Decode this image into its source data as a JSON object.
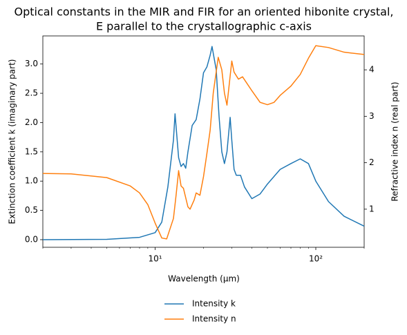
{
  "chart_data": {
    "type": "line",
    "title": "Optical constants in the MIR and FIR for an oriented hibonite crystal,",
    "subtitle": "E parallel to the crystallographic c-axis",
    "xlabel": "Wavelength (μm)",
    "ylabel": "Extinction coefficient k (imaginary part)",
    "y2label": "Refractive index n (real part)",
    "xscale": "log",
    "xlim": [
      2,
      200
    ],
    "xticks": [
      {
        "value": 10,
        "label": "10¹"
      },
      {
        "value": 100,
        "label": "10²"
      }
    ],
    "xminor_ticks": [
      2,
      3,
      4,
      5,
      6,
      7,
      8,
      9,
      20,
      30,
      40,
      50,
      60,
      70,
      80,
      90,
      200
    ],
    "ylim": [
      -0.13,
      3.48
    ],
    "yticks": [
      {
        "value": 0,
        "label": "0.0"
      },
      {
        "value": 0.5,
        "label": "0.5"
      },
      {
        "value": 1,
        "label": "1.0"
      },
      {
        "value": 1.5,
        "label": "1.5"
      },
      {
        "value": 2,
        "label": "2.0"
      },
      {
        "value": 2.5,
        "label": "2.5"
      },
      {
        "value": 3,
        "label": "3.0"
      }
    ],
    "y2lim": [
      0.18,
      4.73
    ],
    "y2ticks": [
      1,
      2,
      3,
      4
    ],
    "legend": "below",
    "series": [
      {
        "name": "Intensity k",
        "color": "#1f77b4",
        "axis": "y",
        "x": [
          2,
          5,
          8,
          10,
          11,
          12,
          13,
          13.3,
          14,
          14.5,
          15,
          15.5,
          16,
          17,
          18,
          19,
          20,
          21,
          22,
          22.6,
          24,
          25,
          26,
          27,
          28,
          29.3,
          30,
          31,
          32,
          34,
          36,
          40,
          45,
          50,
          60,
          70,
          80,
          90,
          100,
          120,
          150,
          200
        ],
        "values": [
          0.0,
          0.005,
          0.04,
          0.12,
          0.3,
          0.9,
          1.7,
          2.15,
          1.4,
          1.25,
          1.3,
          1.22,
          1.5,
          1.95,
          2.05,
          2.4,
          2.85,
          2.95,
          3.15,
          3.3,
          2.9,
          2.1,
          1.5,
          1.3,
          1.5,
          2.09,
          1.7,
          1.2,
          1.1,
          1.1,
          0.9,
          0.7,
          0.78,
          0.95,
          1.2,
          1.3,
          1.38,
          1.3,
          1.0,
          0.65,
          0.4,
          0.23
        ]
      },
      {
        "name": "Intensity n",
        "color": "#ff7f0e",
        "axis": "y2",
        "x": [
          2,
          3,
          5,
          7,
          8,
          9,
          10,
          11,
          11.8,
          13,
          13.5,
          14,
          14.5,
          15,
          16,
          16.5,
          17.5,
          18,
          19,
          20,
          21,
          22,
          23,
          24.7,
          26,
          27,
          28,
          30,
          31,
          33,
          35,
          40,
          45,
          50,
          55,
          60,
          70,
          80,
          90,
          100,
          120,
          150,
          200
        ],
        "values": [
          1.77,
          1.76,
          1.68,
          1.5,
          1.35,
          1.1,
          0.7,
          0.38,
          0.36,
          0.8,
          1.3,
          1.83,
          1.5,
          1.45,
          1.05,
          1.0,
          1.2,
          1.35,
          1.3,
          1.7,
          2.2,
          2.7,
          3.5,
          4.27,
          4.0,
          3.5,
          3.24,
          4.19,
          3.95,
          3.8,
          3.85,
          3.55,
          3.3,
          3.25,
          3.3,
          3.45,
          3.65,
          3.9,
          4.25,
          4.52,
          4.48,
          4.38,
          4.33
        ]
      }
    ]
  }
}
